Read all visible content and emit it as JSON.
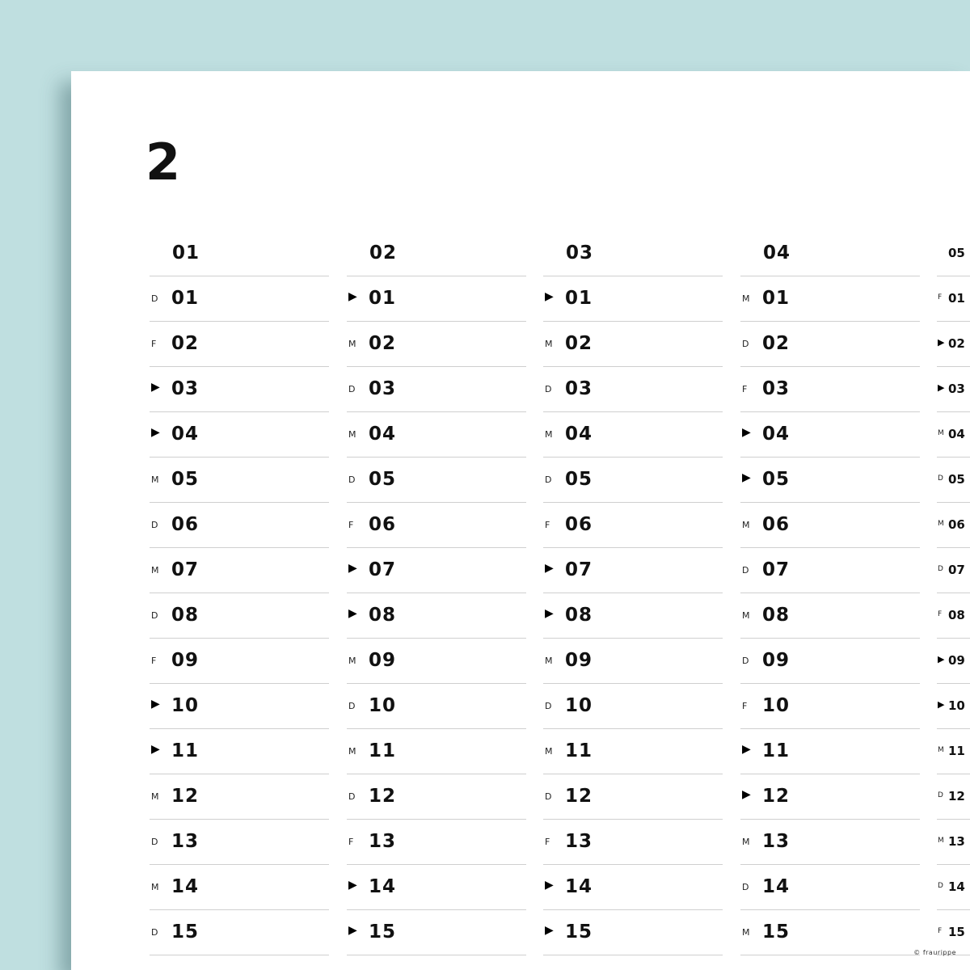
{
  "year": "2",
  "colors": {
    "background": "#bfdfe0",
    "paper": "#ffffff",
    "text": "#111111"
  },
  "weekend_marker_icon": "play-triangle-icon",
  "months": [
    {
      "label": "01",
      "days": [
        {
          "wd": "D",
          "n": "01"
        },
        {
          "wd": "F",
          "n": "02"
        },
        {
          "wd": "▶",
          "n": "03"
        },
        {
          "wd": "▶",
          "n": "04"
        },
        {
          "wd": "M",
          "n": "05"
        },
        {
          "wd": "D",
          "n": "06"
        },
        {
          "wd": "M",
          "n": "07"
        },
        {
          "wd": "D",
          "n": "08"
        },
        {
          "wd": "F",
          "n": "09"
        },
        {
          "wd": "▶",
          "n": "10"
        },
        {
          "wd": "▶",
          "n": "11"
        },
        {
          "wd": "M",
          "n": "12"
        },
        {
          "wd": "D",
          "n": "13"
        },
        {
          "wd": "M",
          "n": "14"
        },
        {
          "wd": "D",
          "n": "15"
        }
      ]
    },
    {
      "label": "02",
      "days": [
        {
          "wd": "▶",
          "n": "01"
        },
        {
          "wd": "M",
          "n": "02"
        },
        {
          "wd": "D",
          "n": "03"
        },
        {
          "wd": "M",
          "n": "04"
        },
        {
          "wd": "D",
          "n": "05"
        },
        {
          "wd": "F",
          "n": "06"
        },
        {
          "wd": "▶",
          "n": "07"
        },
        {
          "wd": "▶",
          "n": "08"
        },
        {
          "wd": "M",
          "n": "09"
        },
        {
          "wd": "D",
          "n": "10"
        },
        {
          "wd": "M",
          "n": "11"
        },
        {
          "wd": "D",
          "n": "12"
        },
        {
          "wd": "F",
          "n": "13"
        },
        {
          "wd": "▶",
          "n": "14"
        },
        {
          "wd": "▶",
          "n": "15"
        }
      ]
    },
    {
      "label": "03",
      "days": [
        {
          "wd": "▶",
          "n": "01"
        },
        {
          "wd": "M",
          "n": "02"
        },
        {
          "wd": "D",
          "n": "03"
        },
        {
          "wd": "M",
          "n": "04"
        },
        {
          "wd": "D",
          "n": "05"
        },
        {
          "wd": "F",
          "n": "06"
        },
        {
          "wd": "▶",
          "n": "07"
        },
        {
          "wd": "▶",
          "n": "08"
        },
        {
          "wd": "M",
          "n": "09"
        },
        {
          "wd": "D",
          "n": "10"
        },
        {
          "wd": "M",
          "n": "11"
        },
        {
          "wd": "D",
          "n": "12"
        },
        {
          "wd": "F",
          "n": "13"
        },
        {
          "wd": "▶",
          "n": "14"
        },
        {
          "wd": "▶",
          "n": "15"
        }
      ]
    },
    {
      "label": "04",
      "days": [
        {
          "wd": "M",
          "n": "01"
        },
        {
          "wd": "D",
          "n": "02"
        },
        {
          "wd": "F",
          "n": "03"
        },
        {
          "wd": "▶",
          "n": "04"
        },
        {
          "wd": "▶",
          "n": "05"
        },
        {
          "wd": "M",
          "n": "06"
        },
        {
          "wd": "D",
          "n": "07"
        },
        {
          "wd": "M",
          "n": "08"
        },
        {
          "wd": "D",
          "n": "09"
        },
        {
          "wd": "F",
          "n": "10"
        },
        {
          "wd": "▶",
          "n": "11"
        },
        {
          "wd": "▶",
          "n": "12"
        },
        {
          "wd": "M",
          "n": "13"
        },
        {
          "wd": "D",
          "n": "14"
        },
        {
          "wd": "M",
          "n": "15"
        }
      ]
    },
    {
      "label": "05",
      "days": [
        {
          "wd": "F",
          "n": "01"
        },
        {
          "wd": "▶",
          "n": "02"
        },
        {
          "wd": "▶",
          "n": "03"
        },
        {
          "wd": "M",
          "n": "04"
        },
        {
          "wd": "D",
          "n": "05"
        },
        {
          "wd": "M",
          "n": "06"
        },
        {
          "wd": "D",
          "n": "07"
        },
        {
          "wd": "F",
          "n": "08"
        },
        {
          "wd": "▶",
          "n": "09"
        },
        {
          "wd": "▶",
          "n": "10"
        },
        {
          "wd": "M",
          "n": "11"
        },
        {
          "wd": "D",
          "n": "12"
        },
        {
          "wd": "M",
          "n": "13"
        },
        {
          "wd": "D",
          "n": "14"
        },
        {
          "wd": "F",
          "n": "15"
        }
      ]
    }
  ],
  "copyright": "© fraurippe"
}
